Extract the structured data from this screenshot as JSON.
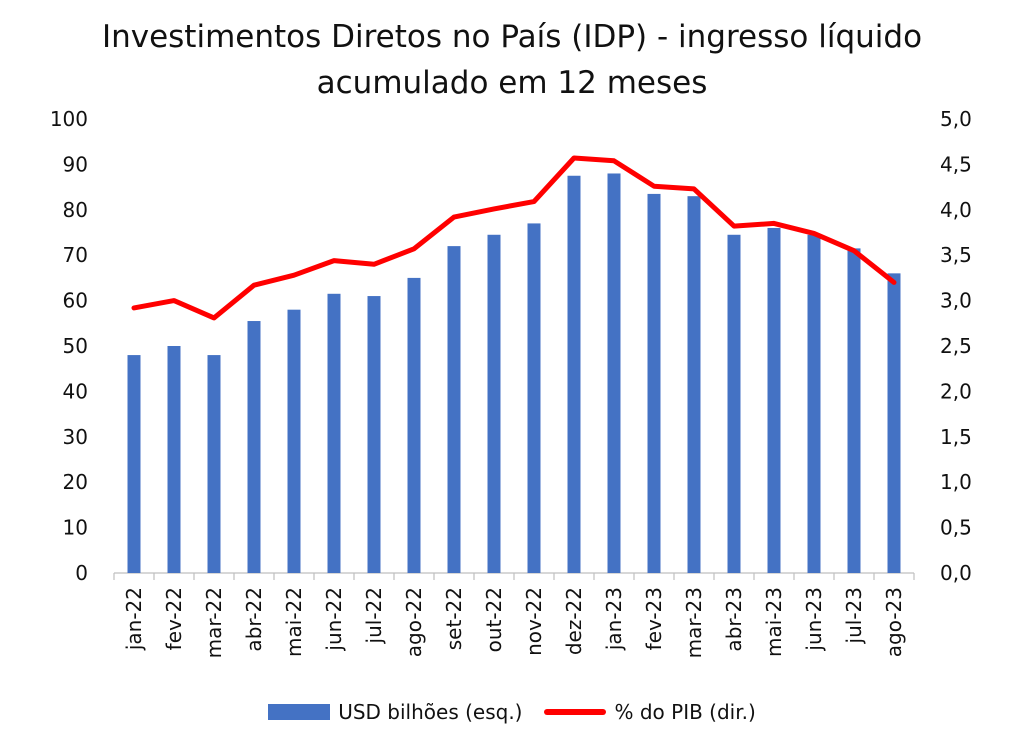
{
  "chart_data": {
    "type": "bar",
    "title_lines": [
      "Investimentos Diretos no País (IDP) - ingresso líquido",
      "acumulado em 12 meses"
    ],
    "categories": [
      "jan-22",
      "fev-22",
      "mar-22",
      "abr-22",
      "mai-22",
      "jun-22",
      "jul-22",
      "ago-22",
      "set-22",
      "out-22",
      "nov-22",
      "dez-22",
      "jan-23",
      "fev-23",
      "mar-23",
      "abr-23",
      "mai-23",
      "jun-23",
      "jul-23",
      "ago-23"
    ],
    "series": [
      {
        "name": "USD bilhões (esq.)",
        "type": "bar",
        "axis": "left",
        "color": "#4472C4",
        "values": [
          48,
          50,
          48,
          55.5,
          58,
          61.5,
          61,
          65,
          72,
          74.5,
          77,
          87.5,
          88,
          83.5,
          83,
          74.5,
          76,
          74.5,
          71.5,
          66
        ]
      },
      {
        "name": "% do PIB (dir.)",
        "type": "line",
        "axis": "right",
        "color": "#FF0000",
        "values": [
          2.92,
          3.0,
          2.81,
          3.17,
          3.28,
          3.44,
          3.4,
          3.57,
          3.92,
          4.01,
          4.09,
          4.57,
          4.54,
          4.26,
          4.23,
          3.82,
          3.85,
          3.74,
          3.55,
          3.2
        ]
      }
    ],
    "y_left": {
      "min": 0,
      "max": 100,
      "ticks": [
        "0",
        "10",
        "20",
        "30",
        "40",
        "50",
        "60",
        "70",
        "80",
        "90",
        "100"
      ]
    },
    "y_right": {
      "min": 0,
      "max": 5,
      "ticks": [
        "0,0",
        "0,5",
        "1,0",
        "1,5",
        "2,0",
        "2,5",
        "3,0",
        "3,5",
        "4,0",
        "4,5",
        "5,0"
      ]
    },
    "grid": false,
    "legend_position": "bottom"
  }
}
